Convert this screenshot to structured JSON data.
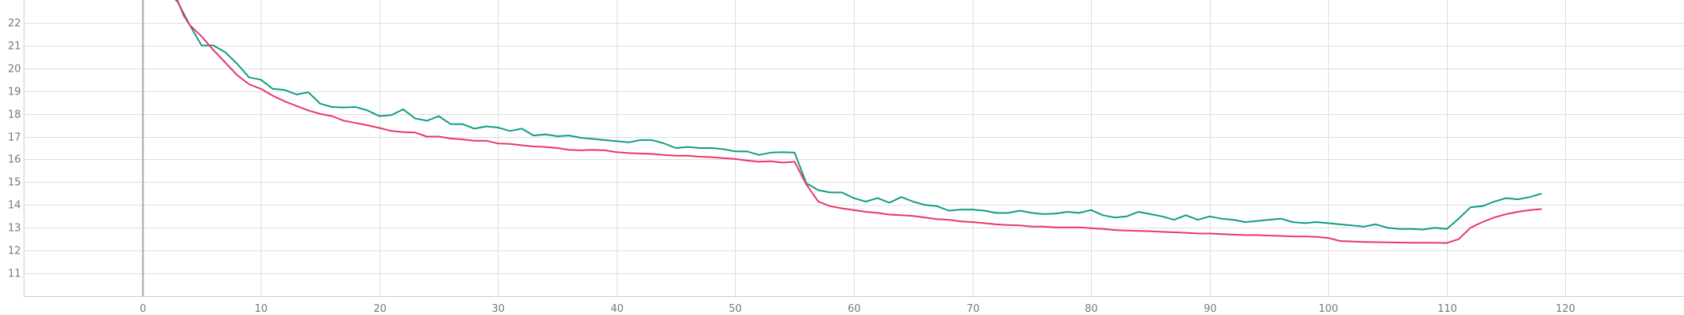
{
  "chart_data": {
    "type": "line",
    "xlim": [
      -12,
      130
    ],
    "ylim": [
      10,
      23
    ],
    "x_ticks": [
      0,
      10,
      20,
      30,
      40,
      50,
      60,
      70,
      80,
      90,
      100,
      110,
      120
    ],
    "y_ticks": [
      11,
      12,
      13,
      14,
      15,
      16,
      17,
      18,
      19,
      20,
      21,
      22
    ],
    "grid": true,
    "series": [
      {
        "color": "#0f9c86",
        "points": [
          [
            2.5,
            23.2
          ],
          [
            3,
            22.9
          ],
          [
            4,
            21.9
          ],
          [
            5,
            21.0
          ],
          [
            6,
            21.0
          ],
          [
            7,
            20.7
          ],
          [
            8,
            20.2
          ],
          [
            9,
            19.6
          ],
          [
            10,
            19.5
          ],
          [
            11,
            19.1
          ],
          [
            12,
            19.05
          ],
          [
            13,
            18.85
          ],
          [
            14,
            18.95
          ],
          [
            15,
            18.45
          ],
          [
            16,
            18.3
          ],
          [
            17,
            18.28
          ],
          [
            18,
            18.3
          ],
          [
            19,
            18.15
          ],
          [
            20,
            17.9
          ],
          [
            21,
            17.95
          ],
          [
            22,
            18.2
          ],
          [
            23,
            17.8
          ],
          [
            24,
            17.7
          ],
          [
            25,
            17.9
          ],
          [
            26,
            17.55
          ],
          [
            27,
            17.55
          ],
          [
            28,
            17.35
          ],
          [
            29,
            17.45
          ],
          [
            30,
            17.4
          ],
          [
            31,
            17.25
          ],
          [
            32,
            17.35
          ],
          [
            33,
            17.05
          ],
          [
            34,
            17.1
          ],
          [
            35,
            17.02
          ],
          [
            36,
            17.05
          ],
          [
            37,
            16.95
          ],
          [
            38,
            16.9
          ],
          [
            39,
            16.85
          ],
          [
            40,
            16.8
          ],
          [
            41,
            16.75
          ],
          [
            42,
            16.85
          ],
          [
            43,
            16.85
          ],
          [
            44,
            16.7
          ],
          [
            45,
            16.5
          ],
          [
            46,
            16.55
          ],
          [
            47,
            16.5
          ],
          [
            48,
            16.5
          ],
          [
            49,
            16.45
          ],
          [
            50,
            16.35
          ],
          [
            51,
            16.35
          ],
          [
            52,
            16.2
          ],
          [
            53,
            16.3
          ],
          [
            54,
            16.32
          ],
          [
            55,
            16.3
          ],
          [
            56,
            14.95
          ],
          [
            57,
            14.65
          ],
          [
            58,
            14.55
          ],
          [
            59,
            14.55
          ],
          [
            60,
            14.3
          ],
          [
            61,
            14.15
          ],
          [
            62,
            14.3
          ],
          [
            63,
            14.1
          ],
          [
            64,
            14.35
          ],
          [
            65,
            14.15
          ],
          [
            66,
            14.0
          ],
          [
            67,
            13.95
          ],
          [
            68,
            13.75
          ],
          [
            69,
            13.8
          ],
          [
            70,
            13.8
          ],
          [
            71,
            13.75
          ],
          [
            72,
            13.65
          ],
          [
            73,
            13.65
          ],
          [
            74,
            13.75
          ],
          [
            75,
            13.65
          ],
          [
            76,
            13.6
          ],
          [
            77,
            13.62
          ],
          [
            78,
            13.7
          ],
          [
            79,
            13.65
          ],
          [
            80,
            13.78
          ],
          [
            81,
            13.55
          ],
          [
            82,
            13.45
          ],
          [
            83,
            13.5
          ],
          [
            84,
            13.7
          ],
          [
            85,
            13.6
          ],
          [
            86,
            13.5
          ],
          [
            87,
            13.35
          ],
          [
            88,
            13.55
          ],
          [
            89,
            13.35
          ],
          [
            90,
            13.5
          ],
          [
            91,
            13.4
          ],
          [
            92,
            13.35
          ],
          [
            93,
            13.25
          ],
          [
            94,
            13.3
          ],
          [
            95,
            13.35
          ],
          [
            96,
            13.4
          ],
          [
            97,
            13.25
          ],
          [
            98,
            13.2
          ],
          [
            99,
            13.25
          ],
          [
            100,
            13.2
          ],
          [
            101,
            13.15
          ],
          [
            102,
            13.1
          ],
          [
            103,
            13.05
          ],
          [
            104,
            13.15
          ],
          [
            105,
            13.0
          ],
          [
            106,
            12.95
          ],
          [
            107,
            12.95
          ],
          [
            108,
            12.92
          ],
          [
            109,
            13.0
          ],
          [
            110,
            12.95
          ],
          [
            111,
            13.4
          ],
          [
            112,
            13.9
          ],
          [
            113,
            13.95
          ],
          [
            114,
            14.15
          ],
          [
            115,
            14.3
          ],
          [
            116,
            14.25
          ],
          [
            117,
            14.35
          ],
          [
            118,
            14.5
          ]
        ]
      },
      {
        "color": "#e8356f",
        "points": [
          [
            2.8,
            23.2
          ],
          [
            3.5,
            22.3
          ],
          [
            4,
            21.9
          ],
          [
            5,
            21.4
          ],
          [
            6,
            20.8
          ],
          [
            7,
            20.25
          ],
          [
            8,
            19.7
          ],
          [
            9,
            19.3
          ],
          [
            10,
            19.1
          ],
          [
            11,
            18.8
          ],
          [
            12,
            18.55
          ],
          [
            13,
            18.35
          ],
          [
            14,
            18.15
          ],
          [
            15,
            18.0
          ],
          [
            16,
            17.9
          ],
          [
            17,
            17.7
          ],
          [
            18,
            17.6
          ],
          [
            19,
            17.5
          ],
          [
            20,
            17.38
          ],
          [
            21,
            17.25
          ],
          [
            22,
            17.2
          ],
          [
            23,
            17.18
          ],
          [
            24,
            17.0
          ],
          [
            25,
            17.0
          ],
          [
            26,
            16.92
          ],
          [
            27,
            16.88
          ],
          [
            28,
            16.82
          ],
          [
            29,
            16.82
          ],
          [
            30,
            16.7
          ],
          [
            31,
            16.68
          ],
          [
            32,
            16.62
          ],
          [
            33,
            16.57
          ],
          [
            34,
            16.55
          ],
          [
            35,
            16.5
          ],
          [
            36,
            16.42
          ],
          [
            37,
            16.4
          ],
          [
            38,
            16.42
          ],
          [
            39,
            16.4
          ],
          [
            40,
            16.32
          ],
          [
            41,
            16.28
          ],
          [
            42,
            16.26
          ],
          [
            43,
            16.24
          ],
          [
            44,
            16.2
          ],
          [
            45,
            16.16
          ],
          [
            46,
            16.16
          ],
          [
            47,
            16.12
          ],
          [
            48,
            16.1
          ],
          [
            49,
            16.06
          ],
          [
            50,
            16.02
          ],
          [
            51,
            15.95
          ],
          [
            52,
            15.9
          ],
          [
            53,
            15.92
          ],
          [
            54,
            15.86
          ],
          [
            55,
            15.9
          ],
          [
            56,
            14.9
          ],
          [
            57,
            14.15
          ],
          [
            58,
            13.95
          ],
          [
            59,
            13.85
          ],
          [
            60,
            13.78
          ],
          [
            61,
            13.7
          ],
          [
            62,
            13.65
          ],
          [
            63,
            13.58
          ],
          [
            64,
            13.55
          ],
          [
            65,
            13.52
          ],
          [
            66,
            13.45
          ],
          [
            67,
            13.38
          ],
          [
            68,
            13.35
          ],
          [
            69,
            13.28
          ],
          [
            70,
            13.25
          ],
          [
            71,
            13.2
          ],
          [
            72,
            13.15
          ],
          [
            73,
            13.12
          ],
          [
            74,
            13.1
          ],
          [
            75,
            13.05
          ],
          [
            76,
            13.05
          ],
          [
            77,
            13.02
          ],
          [
            78,
            13.02
          ],
          [
            79,
            13.02
          ],
          [
            80,
            12.98
          ],
          [
            81,
            12.95
          ],
          [
            82,
            12.9
          ],
          [
            83,
            12.88
          ],
          [
            84,
            12.86
          ],
          [
            85,
            12.85
          ],
          [
            86,
            12.82
          ],
          [
            87,
            12.8
          ],
          [
            88,
            12.78
          ],
          [
            89,
            12.75
          ],
          [
            90,
            12.75
          ],
          [
            91,
            12.72
          ],
          [
            92,
            12.7
          ],
          [
            93,
            12.68
          ],
          [
            94,
            12.68
          ],
          [
            95,
            12.66
          ],
          [
            96,
            12.64
          ],
          [
            97,
            12.62
          ],
          [
            98,
            12.62
          ],
          [
            99,
            12.6
          ],
          [
            100,
            12.55
          ],
          [
            101,
            12.42
          ],
          [
            102,
            12.4
          ],
          [
            103,
            12.38
          ],
          [
            104,
            12.37
          ],
          [
            105,
            12.36
          ],
          [
            106,
            12.35
          ],
          [
            107,
            12.34
          ],
          [
            108,
            12.34
          ],
          [
            109,
            12.34
          ],
          [
            110,
            12.33
          ],
          [
            111,
            12.5
          ],
          [
            112,
            13.0
          ],
          [
            113,
            13.25
          ],
          [
            114,
            13.45
          ],
          [
            115,
            13.6
          ],
          [
            116,
            13.7
          ],
          [
            117,
            13.78
          ],
          [
            118,
            13.82
          ]
        ]
      }
    ]
  }
}
